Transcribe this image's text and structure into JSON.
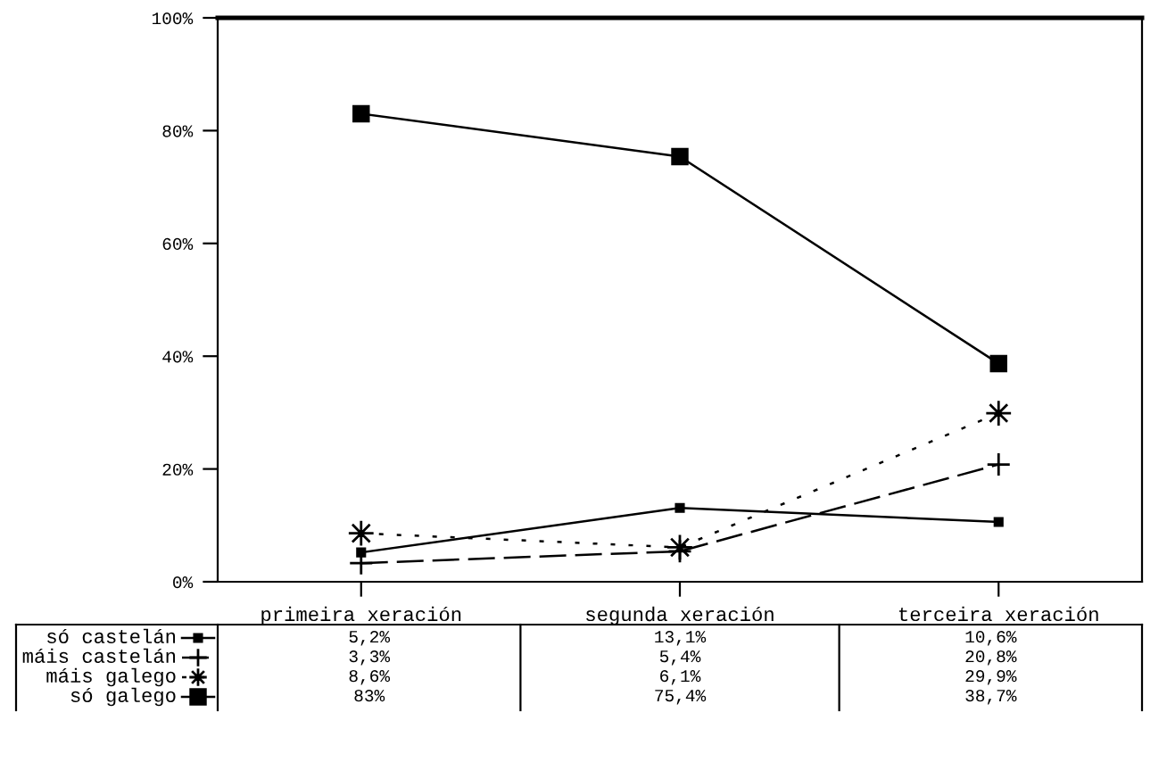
{
  "chart_data": {
    "type": "line",
    "categories": [
      "primeira xeración",
      "segunda xeración",
      "terceira xeración"
    ],
    "series": [
      {
        "name": "só castelán",
        "color": "#000000",
        "marker": "square",
        "line_style": "solid",
        "values": [
          5.2,
          13.1,
          10.6
        ],
        "value_labels": [
          "5,2%",
          "13,1%",
          "10,6%"
        ]
      },
      {
        "name": "máis castelán",
        "color": "#000000",
        "marker": "cross",
        "line_style": "dashed",
        "values": [
          3.3,
          5.4,
          20.8
        ],
        "value_labels": [
          "3,3%",
          "5,4%",
          "20,8%"
        ]
      },
      {
        "name": "máis galego",
        "color": "#000000",
        "marker": "star",
        "line_style": "dotted",
        "values": [
          8.6,
          6.1,
          29.9
        ],
        "value_labels": [
          "8,6%",
          "6,1%",
          "29,9%"
        ]
      },
      {
        "name": "só galego",
        "color": "#000000",
        "marker": "square",
        "line_style": "solid",
        "values": [
          83,
          75.4,
          38.7
        ],
        "value_labels": [
          "83%",
          "75,4%",
          "38,7%"
        ]
      }
    ],
    "ylim": [
      0,
      100
    ],
    "yticks": [
      {
        "value": 0,
        "label": "0%"
      },
      {
        "value": 20,
        "label": "20%"
      },
      {
        "value": 40,
        "label": "40%"
      },
      {
        "value": 60,
        "label": "60%"
      },
      {
        "value": 80,
        "label": "80%"
      },
      {
        "value": 100,
        "label": "100%"
      }
    ],
    "grid": false,
    "legend": "bottom"
  }
}
